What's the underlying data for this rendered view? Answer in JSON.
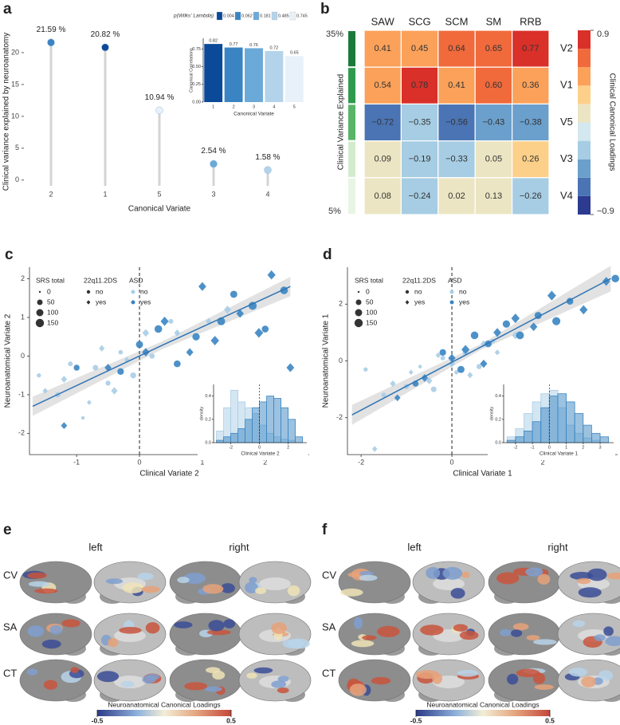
{
  "chart_data": [
    {
      "type": "lollipop",
      "label": "a",
      "categories": [
        "2",
        "1",
        "5",
        "3",
        "4"
      ],
      "values": [
        21.59,
        20.82,
        10.94,
        2.54,
        1.58
      ],
      "value_labels": [
        "21.59 %",
        "20.82 %",
        "10.94 %",
        "2.54 %",
        "1.58 %"
      ],
      "colors": [
        "#3a84c4",
        "#0b4a99",
        "#e8f1fa",
        "#6aa9d8",
        "#b3d3ea"
      ],
      "xlabel": "Canonical Variate",
      "ylabel": "Clinical variance explained by neuroanatomy",
      "ylim": [
        -0.9,
        24
      ],
      "yticks": [
        0,
        5,
        10,
        15,
        20
      ],
      "inset": {
        "type": "bar",
        "categories": [
          "1",
          "2",
          "3",
          "4",
          "5"
        ],
        "values": [
          0.82,
          0.77,
          0.76,
          0.72,
          0.65
        ],
        "colors": [
          "#0b4a99",
          "#3a84c4",
          "#6aa9d8",
          "#b3d3ea",
          "#e8f1fa"
        ],
        "xlabel": "Canonical Variate",
        "ylabel": "Canonical Correlations",
        "ylim": [
          0,
          0.9
        ],
        "yticks": [
          {
            "value": 0,
            "label": "0.00"
          },
          0.25,
          {
            "value": 0.5,
            "label": "0.50"
          },
          0.75
        ],
        "legend": {
          "title": "p(Wilks' Lambda)",
          "items": [
            0.004,
            0.062,
            0.181,
            0.485,
            0.745
          ]
        }
      }
    },
    {
      "type": "heatmap",
      "label": "b",
      "columns": [
        "SAW",
        "SCG",
        "SCM",
        "SM",
        "RRB"
      ],
      "rows": [
        "V2",
        "V1",
        "V5",
        "V3",
        "V4"
      ],
      "values": [
        [
          0.41,
          0.45,
          0.64,
          0.65,
          0.77
        ],
        [
          0.54,
          0.78,
          0.41,
          0.6,
          0.36
        ],
        [
          -0.72,
          -0.35,
          -0.56,
          -0.43,
          -0.38
        ],
        [
          0.09,
          -0.19,
          -0.33,
          0.05,
          0.26
        ],
        [
          0.08,
          -0.24,
          0.02,
          0.13,
          -0.26
        ]
      ],
      "value_labels": [
        [
          "0.41",
          "0.45",
          "0.64",
          "0.65",
          "0.77"
        ],
        [
          "0.54",
          "0.78",
          "0.41",
          "0.60",
          "0.36"
        ],
        [
          "−0.72",
          "−0.35",
          "−0.56",
          "−0.43",
          "−0.38"
        ],
        [
          "0.09",
          "−0.19",
          "−0.33",
          "0.05",
          "0.26"
        ],
        [
          "0.08",
          "−0.24",
          "0.02",
          "0.13",
          "−0.26"
        ]
      ],
      "row_colors": [
        "#1b7a3a",
        "#2f9a4d",
        "#58b468",
        "#d3ebcd",
        "#e8f5e4"
      ],
      "ylabel": "Clinical Variance Explained",
      "variance_labels": [
        "35%",
        "5%"
      ],
      "colorbar": {
        "title": "Clinical Canonical Loadings",
        "lim": [
          -0.9,
          0.9
        ],
        "ticks": [
          {
            "value": -0.9,
            "label": "−0.9"
          },
          0.9
        ],
        "colors": [
          "#2c3a8f",
          "#4a74b4",
          "#6b9fcc",
          "#a6cde3",
          "#d3e8ef",
          "#ece5c3",
          "#fdd08a",
          "#fba15a",
          "#f06a3c",
          "#d9302a"
        ]
      }
    },
    {
      "type": "scatter",
      "label": "c",
      "xlabel": "Clinical Variate 2",
      "ylabel": "Neuroanatomical Variate 2",
      "xlim": [
        -1.75,
        2.7
      ],
      "ylim": [
        -2.55,
        2.3
      ],
      "xticks": [
        -1,
        0,
        1,
        2
      ],
      "yticks": [
        -2,
        -1,
        0,
        1,
        2
      ],
      "vline": 0,
      "colors": [
        "#a9cde6",
        "#3a85c2"
      ],
      "shapes": [
        "circle",
        "diamond"
      ],
      "legend_size": {
        "title": "SRS total",
        "items": [
          0,
          50,
          100,
          150
        ]
      },
      "legend_shape": {
        "title": "22q11.2DS",
        "items": [
          "no",
          "yes"
        ]
      },
      "legend_color": {
        "title": "ASD",
        "items": [
          "no",
          "yes"
        ]
      },
      "fit": {
        "x": [
          -1.7,
          0.35,
          2.4
        ],
        "y": [
          -1.3,
          0.27,
          1.8
        ],
        "lower": [
          -1.55,
          0.17,
          1.55
        ],
        "upper": [
          -1.05,
          0.37,
          2.05
        ]
      },
      "series": [
        {
          "color": "#a9cde6",
          "shape": "circle",
          "x": [
            -1.6,
            -1.3,
            -1.1,
            -0.9,
            -0.7,
            -0.5,
            -0.3,
            -0.1,
            0.2,
            0.5
          ],
          "y": [
            -0.5,
            -1.0,
            -0.2,
            -1.6,
            -0.3,
            -0.7,
            0.1,
            -0.5,
            0.0,
            0.9
          ],
          "size": [
            20,
            40,
            30,
            10,
            50,
            35,
            25,
            60,
            40,
            30
          ]
        },
        {
          "color": "#a9cde6",
          "shape": "diamond",
          "x": [
            -1.5,
            -1.2,
            -0.8,
            -0.6,
            -0.4,
            -0.2,
            0.1,
            0.6,
            1.1,
            1.4
          ],
          "y": [
            -0.9,
            -0.6,
            -1.2,
            0.2,
            -0.9,
            -0.1,
            0.6,
            0.6,
            0.9,
            1.2
          ],
          "size": [
            30,
            50,
            20,
            40,
            60,
            30,
            70,
            50,
            40,
            80
          ]
        },
        {
          "color": "#3a85c2",
          "shape": "circle",
          "x": [
            -1.0,
            -0.3,
            0.0,
            0.3,
            0.6,
            0.9,
            1.3,
            1.5,
            1.8,
            2.0,
            2.3
          ],
          "y": [
            -0.3,
            -0.4,
            0.3,
            0.7,
            -0.2,
            0.5,
            0.9,
            1.6,
            1.3,
            0.7,
            1.7
          ],
          "size": [
            60,
            80,
            100,
            120,
            90,
            110,
            130,
            100,
            140,
            90,
            120
          ]
        },
        {
          "color": "#3a85c2",
          "shape": "diamond",
          "x": [
            -1.2,
            -0.5,
            0.1,
            0.4,
            0.8,
            1.0,
            1.2,
            1.6,
            1.9,
            2.1,
            2.4
          ],
          "y": [
            -1.8,
            -0.3,
            0.1,
            0.9,
            0.1,
            1.8,
            0.4,
            1.1,
            0.6,
            2.1,
            -0.3
          ],
          "size": [
            50,
            70,
            90,
            110,
            80,
            100,
            120,
            90,
            130,
            110,
            100
          ]
        }
      ],
      "inset": {
        "type": "histogram",
        "xlabel": "Clinical Variate 2",
        "ylabel": "density",
        "xlim": [
          -3.2,
          3.3
        ],
        "ylim": [
          0,
          0.5
        ],
        "xticks": [
          -2,
          0,
          2
        ],
        "yticks": [
          {
            "value": 0,
            "label": "0.0"
          },
          0.2,
          0.4
        ],
        "vline": 0,
        "bins": [
          -3,
          -2.5,
          -2,
          -1.5,
          -1,
          -0.5,
          0,
          0.5,
          1,
          1.5,
          2,
          2.5,
          3
        ],
        "series": [
          {
            "color": "#a9cde6",
            "values": [
              0.1,
              0.3,
              0.45,
              0.35,
              0.3,
              0.25,
              0.15,
              0.08,
              0.05,
              0.03,
              0.02,
              0.0
            ]
          },
          {
            "color": "#3a85c2",
            "values": [
              0.02,
              0.05,
              0.08,
              0.12,
              0.2,
              0.3,
              0.35,
              0.4,
              0.38,
              0.3,
              0.2,
              0.05
            ]
          }
        ]
      }
    },
    {
      "type": "scatter",
      "label": "d",
      "xlabel": "Clinical Variate 1",
      "ylabel": "Neuroanatomical Variate 1",
      "xlim": [
        -2.3,
        3.65
      ],
      "ylim": [
        -3.3,
        3.3
      ],
      "xticks": [
        -2,
        0,
        2
      ],
      "yticks": [
        -2,
        0,
        2
      ],
      "vline": 0,
      "colors": [
        "#a9cde6",
        "#3a85c2"
      ],
      "shapes": [
        "circle",
        "diamond"
      ],
      "legend_size": {
        "title": "SRS total",
        "items": [
          0,
          50,
          100,
          150
        ]
      },
      "legend_shape": {
        "title": "22q11.2DS",
        "items": [
          "no",
          "yes"
        ]
      },
      "legend_color": {
        "title": "ASD",
        "items": [
          "no",
          "yes"
        ]
      },
      "fit": {
        "x": [
          -2.2,
          0.65,
          3.5
        ],
        "y": [
          -1.9,
          0.5,
          2.9
        ],
        "lower": [
          -2.25,
          0.4,
          2.45
        ],
        "upper": [
          -1.55,
          0.6,
          3.35
        ]
      },
      "series": [
        {
          "color": "#a9cde6",
          "shape": "circle",
          "x": [
            -1.9,
            -1.5,
            -1.0,
            -0.7,
            -0.4,
            -0.2,
            0.1,
            0.3,
            0.6,
            0.9
          ],
          "y": [
            -0.3,
            -1.2,
            -0.9,
            -0.2,
            -1.0,
            0.1,
            -0.4,
            0.3,
            -0.2,
            0.7
          ],
          "size": [
            20,
            30,
            40,
            10,
            50,
            30,
            20,
            60,
            40,
            30
          ]
        },
        {
          "color": "#a9cde6",
          "shape": "diamond",
          "x": [
            -1.7,
            -1.3,
            -0.9,
            -0.5,
            -0.3,
            0.0,
            0.4,
            0.7,
            1.0,
            1.4
          ],
          "y": [
            -3.1,
            -0.8,
            -0.4,
            -0.7,
            0.2,
            -0.1,
            -0.5,
            0.6,
            0.3,
            0.9
          ],
          "size": [
            30,
            40,
            20,
            50,
            30,
            60,
            40,
            50,
            30,
            70
          ]
        },
        {
          "color": "#3a85c2",
          "shape": "circle",
          "x": [
            -0.8,
            -0.2,
            0.2,
            0.5,
            0.8,
            1.2,
            1.5,
            1.9,
            2.3,
            2.6,
            3.6
          ],
          "y": [
            -0.8,
            0.3,
            -0.3,
            0.9,
            0.6,
            1.3,
            0.9,
            1.6,
            1.4,
            2.1,
            2.9
          ],
          "size": [
            60,
            80,
            100,
            120,
            90,
            110,
            130,
            100,
            140,
            90,
            120
          ]
        },
        {
          "color": "#3a85c2",
          "shape": "diamond",
          "x": [
            -1.2,
            -0.6,
            0.0,
            0.3,
            0.7,
            1.0,
            1.4,
            1.8,
            2.2,
            2.9,
            3.4
          ],
          "y": [
            -1.3,
            -0.6,
            0.1,
            0.4,
            -0.1,
            1.0,
            1.5,
            1.2,
            2.3,
            1.8,
            2.8
          ],
          "size": [
            50,
            70,
            90,
            110,
            80,
            100,
            120,
            90,
            130,
            110,
            100
          ]
        }
      ],
      "inset": {
        "type": "histogram",
        "xlabel": "Clinical Variate 1",
        "ylabel": "density",
        "xlim": [
          -2.7,
          3.8
        ],
        "ylim": [
          0,
          0.5
        ],
        "xticks": [
          -2,
          -1,
          0,
          1,
          2,
          3
        ],
        "yticks": [
          {
            "value": 0,
            "label": "0.0"
          },
          0.2,
          0.4
        ],
        "vline": 0,
        "bins": [
          -2.5,
          -2,
          -1.5,
          -1,
          -0.5,
          0,
          0.5,
          1,
          1.5,
          2,
          2.5,
          3,
          3.5
        ],
        "series": [
          {
            "color": "#a9cde6",
            "values": [
              0.05,
              0.12,
              0.25,
              0.35,
              0.42,
              0.45,
              0.3,
              0.15,
              0.08,
              0.04,
              0.02,
              0.0
            ]
          },
          {
            "color": "#3a85c2",
            "values": [
              0.02,
              0.05,
              0.1,
              0.18,
              0.3,
              0.4,
              0.42,
              0.35,
              0.25,
              0.15,
              0.08,
              0.05
            ]
          }
        ]
      }
    },
    {
      "type": "brain",
      "label": "e",
      "columns": [
        "left",
        "right"
      ],
      "rows": [
        "CV",
        "SA",
        "CT"
      ],
      "colorbar": {
        "title": "Neuroanatomical Canonical Loadings",
        "lim": [
          -0.5,
          0.5
        ],
        "ticks": [
          -0.5,
          0.5
        ]
      }
    },
    {
      "type": "brain",
      "label": "f",
      "columns": [
        "left",
        "right"
      ],
      "rows": [
        "CV",
        "SA",
        "CT"
      ],
      "colorbar": {
        "title": "Neuroanatomical Canonical Loadings",
        "lim": [
          -0.5,
          0.5
        ],
        "ticks": [
          -0.5,
          0.5
        ]
      }
    }
  ]
}
